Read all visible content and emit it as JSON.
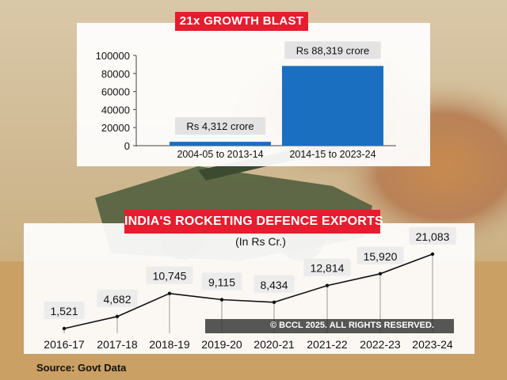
{
  "banner_top": "21x GROWTH BLAST",
  "banner_bottom": "INDIA'S ROCKETING DEFENCE EXPORTS",
  "unit_label": "(In Rs Cr.)",
  "source": "Source: Govt Data",
  "copyright": "© BCCL 2025. ALL RIGHTS RESERVED.",
  "colors": {
    "bar": "#1a6fc0",
    "banner": "#e51d2e",
    "line": "#111111"
  },
  "chart_data": [
    {
      "type": "bar",
      "title": "21x GROWTH BLAST",
      "categories": [
        "2004-05 to 2013-14",
        "2014-15 to 2023-24"
      ],
      "values": [
        4312,
        88319
      ],
      "data_labels": [
        "Rs 4,312 crore",
        "Rs 88,319 crore"
      ],
      "yticks": [
        "0",
        "20000",
        "40000",
        "60000",
        "80000",
        "100000"
      ],
      "ylim": [
        0,
        100000
      ],
      "grid": false
    },
    {
      "type": "line",
      "title": "INDIA'S ROCKETING DEFENCE EXPORTS",
      "unit": "(In Rs Cr.)",
      "categories": [
        "2016-17",
        "2017-18",
        "2018-19",
        "2019-20",
        "2020-21",
        "2021-22",
        "2022-23",
        "2023-24"
      ],
      "values": [
        1521,
        4682,
        10745,
        9115,
        8434,
        12814,
        15920,
        21083
      ],
      "data_labels": [
        "1,521",
        "4,682",
        "10,745",
        "9,115",
        "8,434",
        "12,814",
        "15,920",
        "21,083"
      ],
      "grid": "vertical drop lines"
    }
  ]
}
